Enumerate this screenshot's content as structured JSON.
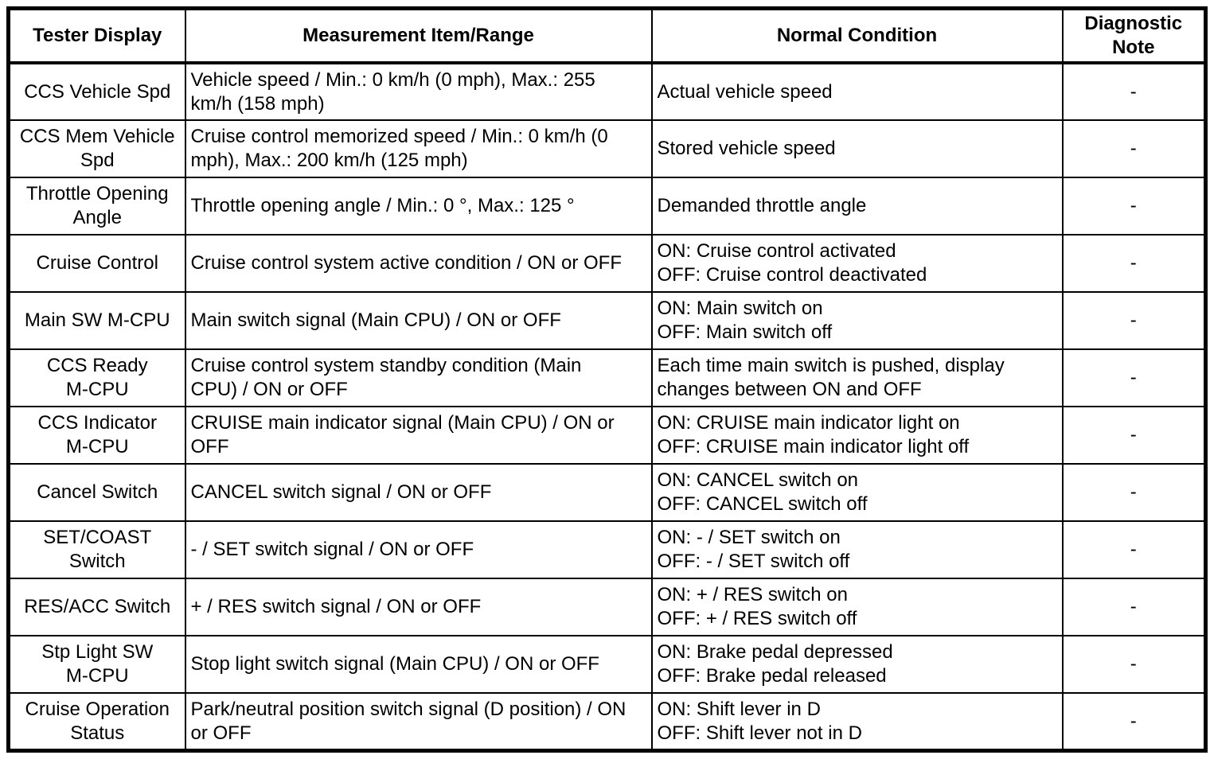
{
  "table": {
    "headers": {
      "tester_display": "Tester Display",
      "measurement_item_range": "Measurement Item/Range",
      "normal_condition": "Normal Condition",
      "diagnostic_note": "Diagnostic\nNote"
    },
    "rows": [
      {
        "tester_display": "CCS Vehicle Spd",
        "measurement_item_range": "Vehicle speed / Min.: 0 km/h (0 mph), Max.: 255 km/h (158 mph)",
        "normal_condition": "Actual vehicle speed",
        "diagnostic_note": "-"
      },
      {
        "tester_display": "CCS Mem Vehicle\nSpd",
        "measurement_item_range": "Cruise control memorized speed / Min.: 0 km/h (0 mph), Max.: 200 km/h (125 mph)",
        "normal_condition": "Stored vehicle speed",
        "diagnostic_note": "-"
      },
      {
        "tester_display": "Throttle Opening\nAngle",
        "measurement_item_range": "Throttle opening angle / Min.: 0 °, Max.: 125 °",
        "normal_condition": "Demanded throttle angle",
        "diagnostic_note": "-"
      },
      {
        "tester_display": "Cruise Control",
        "measurement_item_range": "Cruise control system active condition / ON or OFF",
        "normal_condition": "ON: Cruise control activated\nOFF: Cruise control deactivated",
        "diagnostic_note": "-"
      },
      {
        "tester_display": "Main SW M-CPU",
        "measurement_item_range": "Main switch signal (Main CPU) / ON or OFF",
        "normal_condition": "ON: Main switch on\nOFF: Main switch off",
        "diagnostic_note": "-"
      },
      {
        "tester_display": "CCS Ready\nM-CPU",
        "measurement_item_range": "Cruise control system standby condition (Main CPU) / ON or OFF",
        "normal_condition": "Each time main switch is pushed, display changes between ON and OFF",
        "diagnostic_note": "-"
      },
      {
        "tester_display": "CCS Indicator\nM-CPU",
        "measurement_item_range": "CRUISE main indicator signal (Main CPU) / ON or OFF",
        "normal_condition": "ON: CRUISE main indicator light on\nOFF: CRUISE main indicator light off",
        "diagnostic_note": "-"
      },
      {
        "tester_display": "Cancel Switch",
        "measurement_item_range": "CANCEL switch signal / ON or OFF",
        "normal_condition": "ON: CANCEL switch on\nOFF: CANCEL switch off",
        "diagnostic_note": "-"
      },
      {
        "tester_display": "SET/COAST\nSwitch",
        "measurement_item_range": "- / SET switch signal / ON or OFF",
        "normal_condition": "ON: - / SET switch on\nOFF: - / SET switch off",
        "diagnostic_note": "-"
      },
      {
        "tester_display": "RES/ACC Switch",
        "measurement_item_range": "+ / RES switch signal / ON or OFF",
        "normal_condition": "ON: + / RES switch on\nOFF: + / RES switch off",
        "diagnostic_note": "-"
      },
      {
        "tester_display": "Stp Light SW\nM-CPU",
        "measurement_item_range": "Stop light switch signal (Main CPU) / ON or OFF",
        "normal_condition": "ON: Brake pedal depressed\nOFF: Brake pedal released",
        "diagnostic_note": "-"
      },
      {
        "tester_display": "Cruise Operation\nStatus",
        "measurement_item_range": "Park/neutral position switch signal (D position) / ON or OFF",
        "normal_condition": "ON: Shift lever in D\nOFF: Shift lever not in D",
        "diagnostic_note": "-"
      }
    ]
  }
}
